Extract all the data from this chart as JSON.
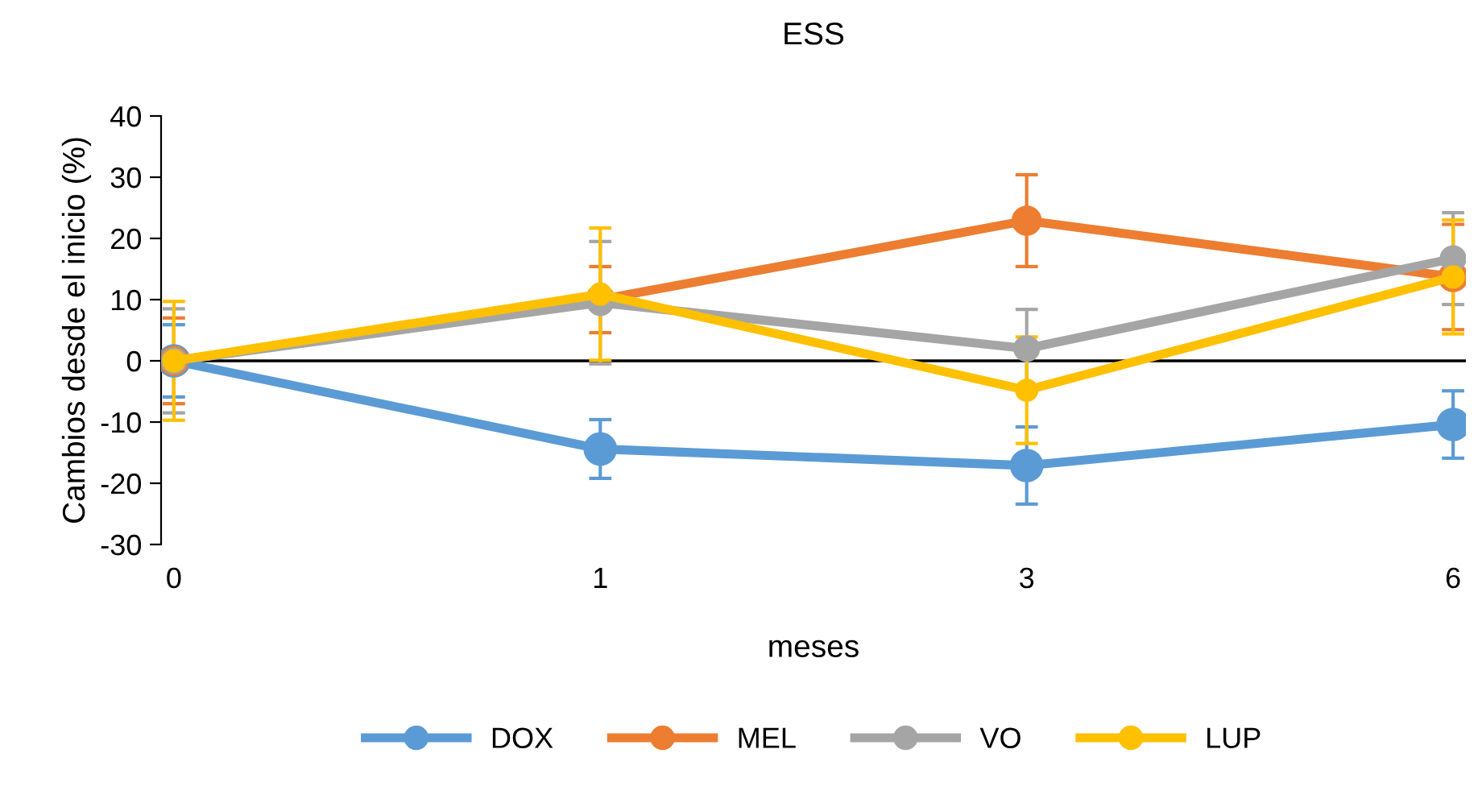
{
  "chart_data": {
    "type": "line",
    "title": "ESS",
    "xlabel": "meses",
    "ylabel": "Cambios desde el inicio (%)",
    "categories": [
      "0",
      "1",
      "3",
      "6"
    ],
    "ylim": [
      -30,
      40
    ],
    "yticks": [
      -30,
      -20,
      -10,
      0,
      10,
      20,
      30,
      40
    ],
    "grid": false,
    "legend": "bottom",
    "marker": "circle",
    "line_style": "solid",
    "ref_lines": [
      {
        "axis": "y",
        "value": 0,
        "color": "#000000"
      }
    ],
    "series": [
      {
        "name": "DOX",
        "color": "#5b9bd5",
        "values": [
          0,
          -14.4,
          -17.1,
          -10.4
        ],
        "errors": [
          5.9,
          4.8,
          6.3,
          5.5
        ]
      },
      {
        "name": "MEL",
        "color": "#ed7d31",
        "values": [
          0,
          10,
          22.9,
          13.7
        ],
        "errors": [
          7,
          5.4,
          7.5,
          8.6
        ]
      },
      {
        "name": "VO",
        "color": "#a5a5a5",
        "values": [
          0,
          9.5,
          2,
          16.7
        ],
        "errors": [
          8.5,
          10,
          6.4,
          7.5
        ]
      },
      {
        "name": "LUP",
        "color": "#ffc000",
        "values": [
          0,
          10.9,
          -4.8,
          13.7
        ],
        "errors": [
          9.7,
          10.8,
          8.7,
          9.3
        ]
      }
    ]
  }
}
